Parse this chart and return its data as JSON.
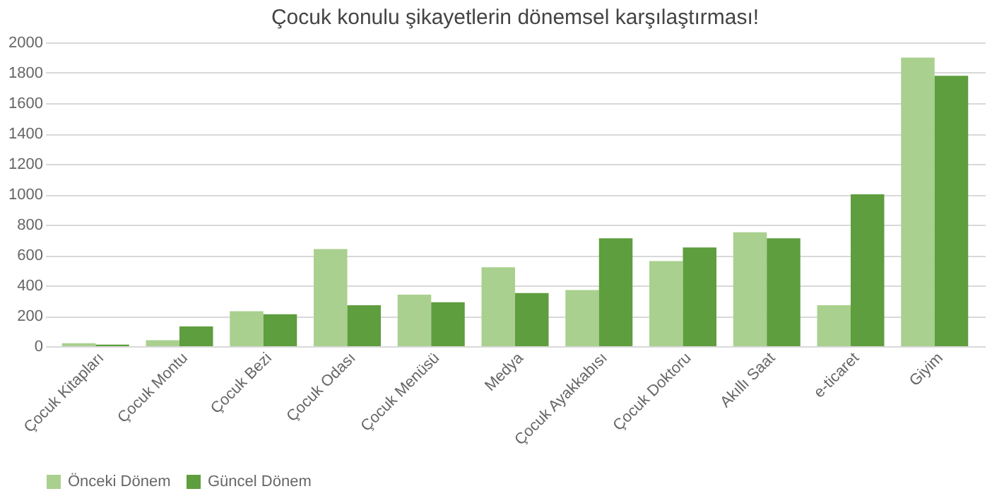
{
  "chart_data": {
    "type": "bar",
    "title": "Çocuk konulu şikayetlerin dönemsel karşılaştırması!",
    "categories": [
      "Çocuk Kitapları",
      "Çocuk Montu",
      "Çocuk Bezi",
      "Çocuk Odası",
      "Çocuk Menüsü",
      "Medya",
      "Çocuk Ayakkabısı",
      "Çocuk Doktoru",
      "Akıllı Saat",
      "e-ticaret",
      "Giyim"
    ],
    "series": [
      {
        "name": "Önceki Dönem",
        "color": "#a9d08e",
        "values": [
          20,
          40,
          230,
          640,
          340,
          520,
          370,
          560,
          750,
          270,
          1900
        ]
      },
      {
        "name": "Güncel Dönem",
        "color": "#5e9e3e",
        "values": [
          10,
          130,
          210,
          270,
          290,
          350,
          710,
          650,
          710,
          1000,
          1780
        ]
      }
    ],
    "ylim": [
      0,
      2000
    ],
    "yticks": [
      0,
      200,
      400,
      600,
      800,
      1000,
      1200,
      1400,
      1600,
      1800,
      2000
    ],
    "grid": "y",
    "legend": "bottom"
  }
}
